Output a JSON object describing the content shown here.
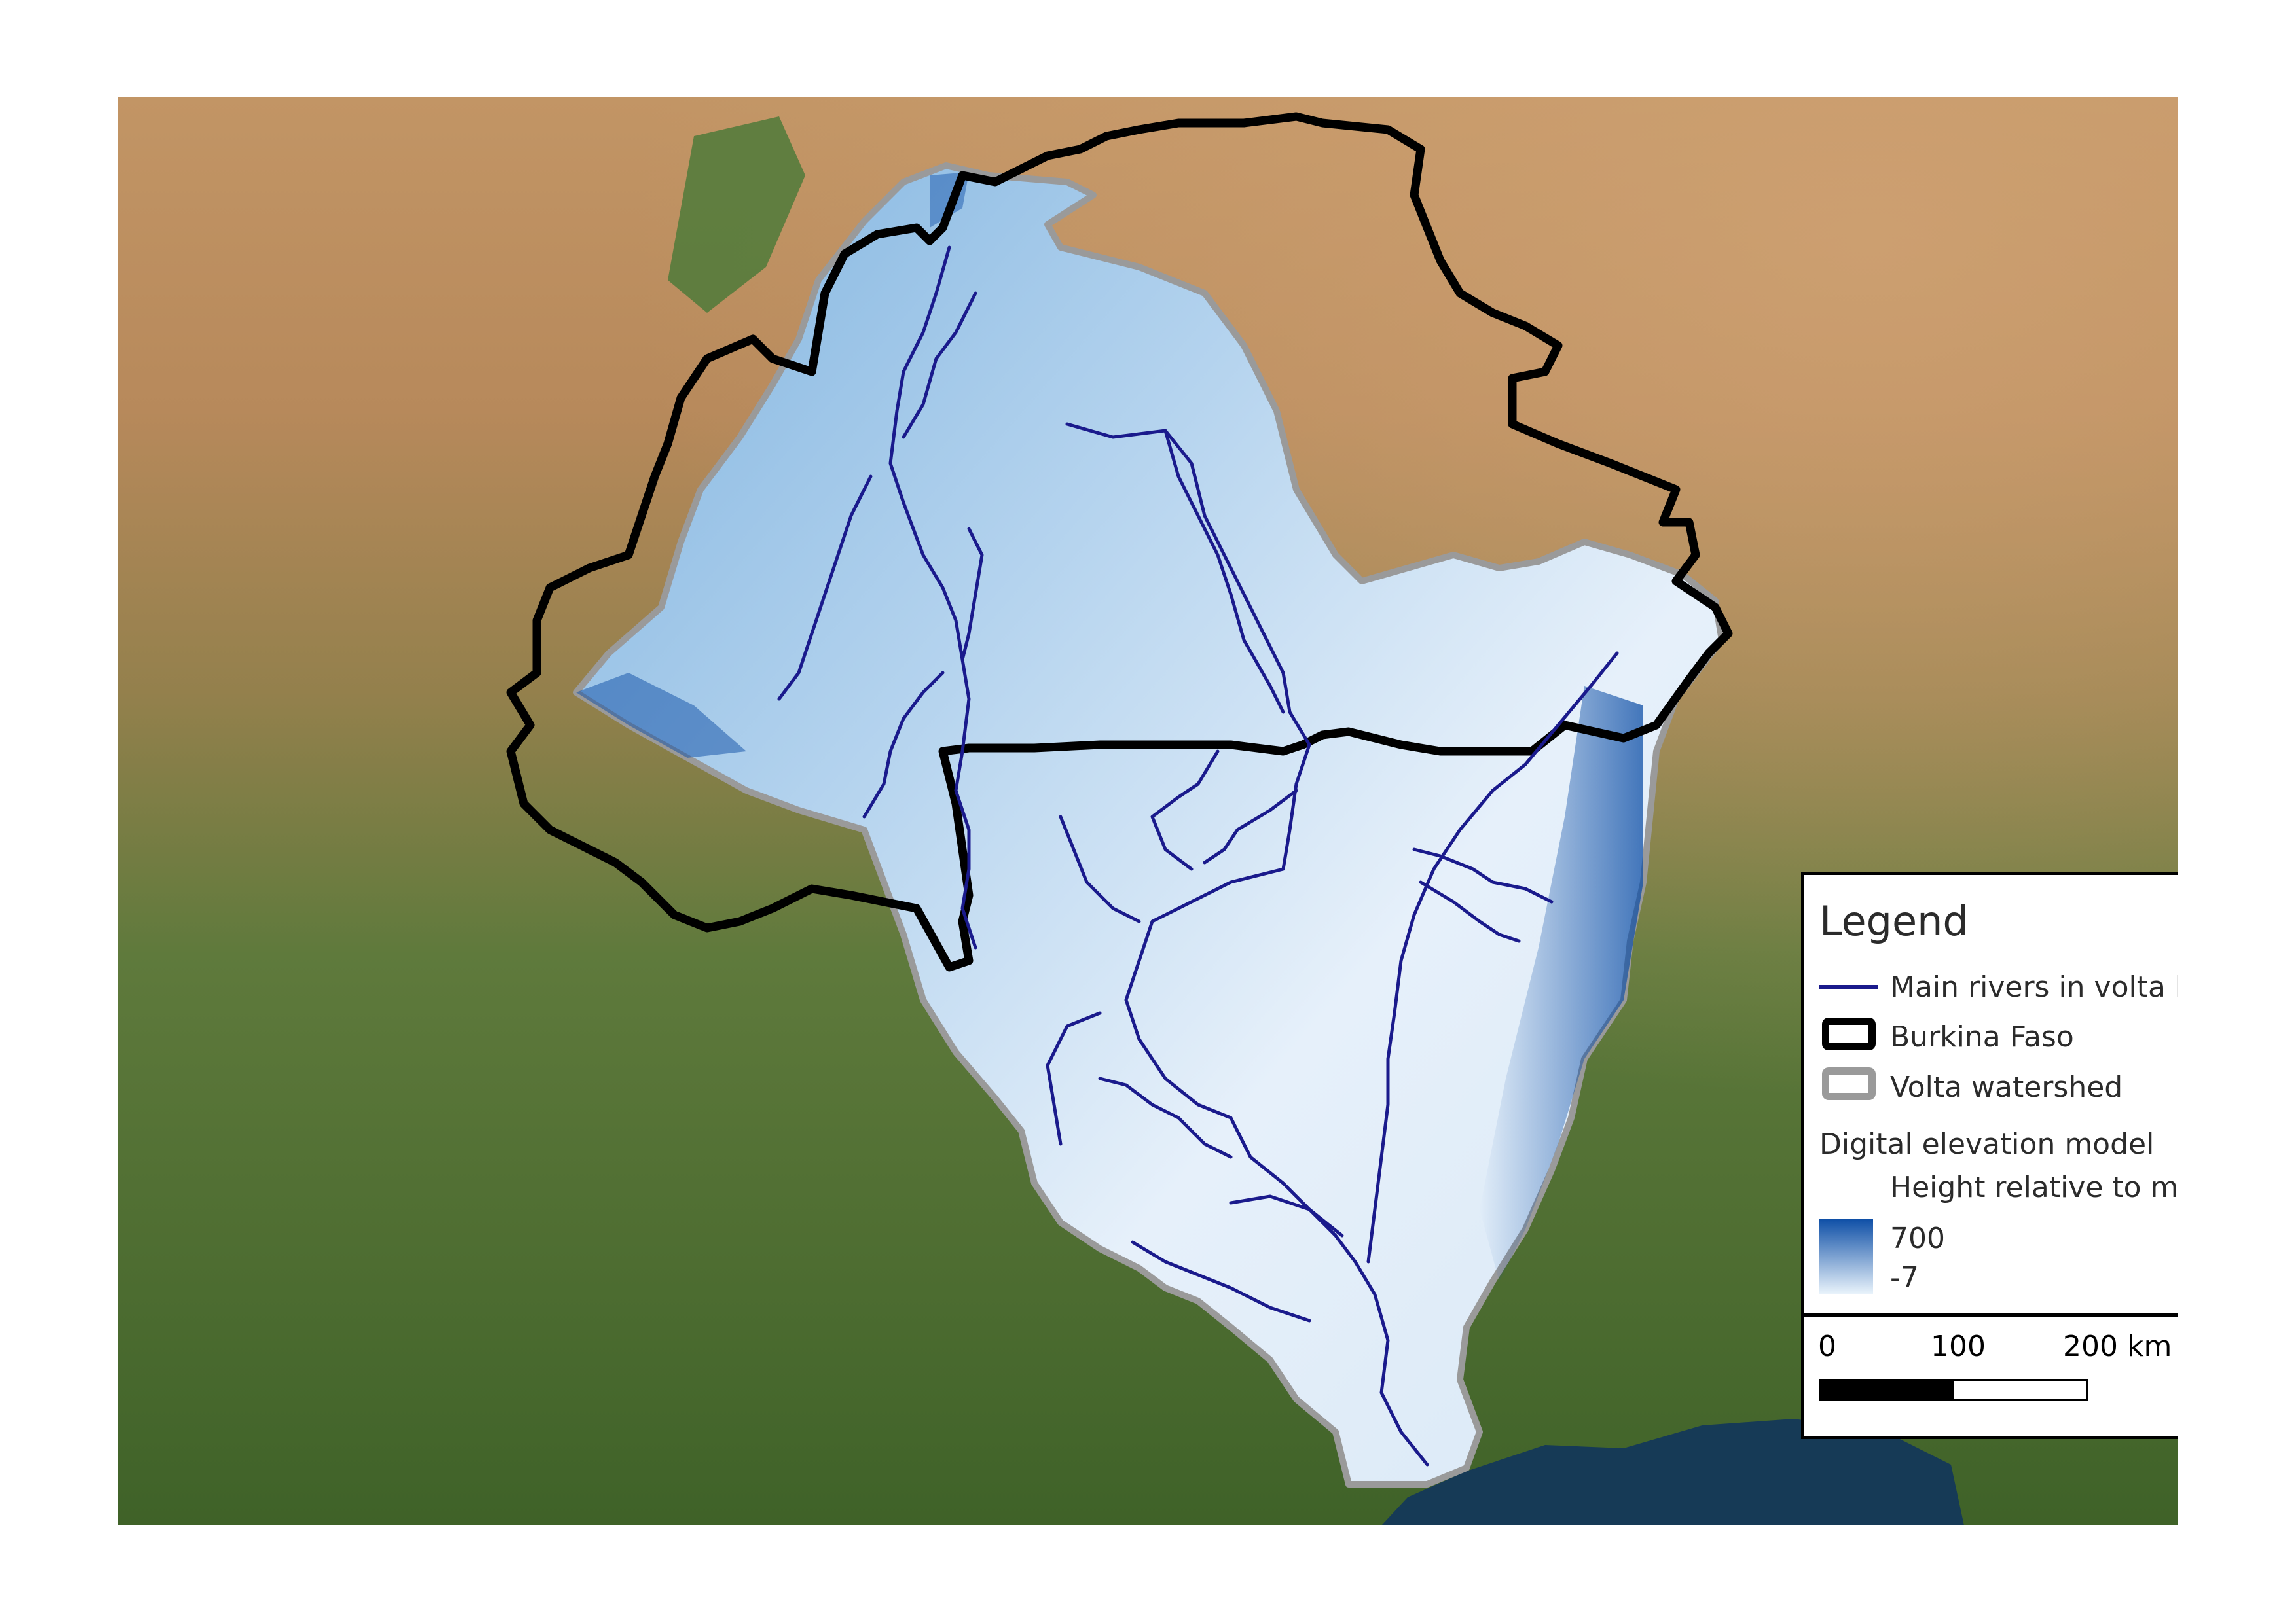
{
  "legend": {
    "title": "Legend",
    "items": [
      {
        "label": "Main rivers in volta basin",
        "color": "#1a1a8c"
      },
      {
        "label": "Burkina Faso",
        "color": "#000000"
      },
      {
        "label": "Volta watershed",
        "color": "#9a9a9a"
      }
    ],
    "dem_heading": "Digital elevation model",
    "dem_subheading": "Height relative to msl in m",
    "dem_max": "700",
    "dem_min": "-7",
    "dem_colors": {
      "high": "#0d4ea6",
      "low": "#e9f3fb"
    }
  },
  "scale": {
    "label_0": "0",
    "label_100": "100",
    "label_200": "200 km"
  },
  "icons": {
    "north_arrow": "north-arrow-icon"
  },
  "colors": {
    "sahel": "#b98a5a",
    "forest": "#4d6e33",
    "sea": "#163a56",
    "river": "#1a1a8c"
  }
}
